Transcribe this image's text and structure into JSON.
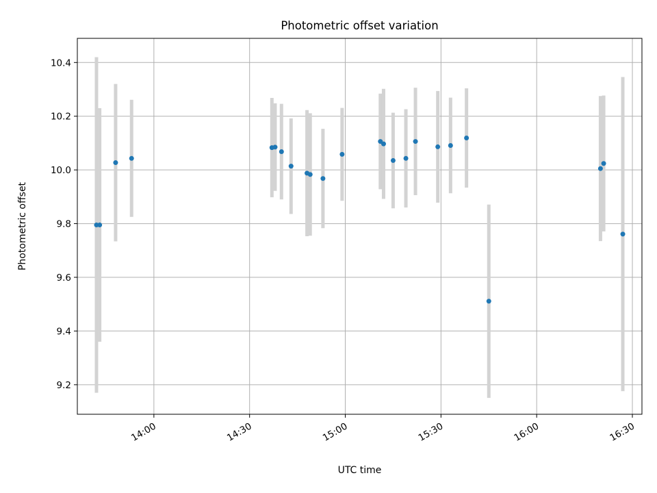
{
  "chart_data": {
    "type": "scatter",
    "title": "Photometric offset variation",
    "xlabel": "UTC time",
    "ylabel": "Photometric offset",
    "x_unit": "minutes",
    "xlim": [
      "13:36",
      "16:33"
    ],
    "ylim": [
      9.09,
      10.49
    ],
    "x_ticks": [
      "14:00",
      "14:30",
      "15:00",
      "15:30",
      "16:00",
      "16:30"
    ],
    "y_ticks": [
      "9.2",
      "9.4",
      "9.6",
      "9.8",
      "10.0",
      "10.2",
      "10.4"
    ],
    "grid": true,
    "colors": {
      "points": "#1f77b4",
      "error_bars": "#d3d3d3",
      "grid": "#b0b0b0"
    },
    "points": [
      {
        "x": "13:42",
        "y": 9.795,
        "yerr": 0.625
      },
      {
        "x": "13:43",
        "y": 9.795,
        "yerr": 0.435
      },
      {
        "x": "13:48",
        "y": 10.027,
        "yerr": 0.293
      },
      {
        "x": "13:53",
        "y": 10.043,
        "yerr": 0.218
      },
      {
        "x": "14:37",
        "y": 10.083,
        "yerr": 0.185
      },
      {
        "x": "14:38",
        "y": 10.085,
        "yerr": 0.163
      },
      {
        "x": "14:40",
        "y": 10.068,
        "yerr": 0.178
      },
      {
        "x": "14:43",
        "y": 10.014,
        "yerr": 0.178
      },
      {
        "x": "14:48",
        "y": 9.988,
        "yerr": 0.235
      },
      {
        "x": "14:49",
        "y": 9.983,
        "yerr": 0.228
      },
      {
        "x": "14:53",
        "y": 9.968,
        "yerr": 0.185
      },
      {
        "x": "14:59",
        "y": 10.058,
        "yerr": 0.173
      },
      {
        "x": "15:11",
        "y": 10.106,
        "yerr": 0.178
      },
      {
        "x": "15:12",
        "y": 10.097,
        "yerr": 0.205
      },
      {
        "x": "15:15",
        "y": 10.035,
        "yerr": 0.178
      },
      {
        "x": "15:19",
        "y": 10.043,
        "yerr": 0.183
      },
      {
        "x": "15:22",
        "y": 10.106,
        "yerr": 0.2
      },
      {
        "x": "15:29",
        "y": 10.086,
        "yerr": 0.208
      },
      {
        "x": "15:33",
        "y": 10.091,
        "yerr": 0.178
      },
      {
        "x": "15:38",
        "y": 10.119,
        "yerr": 0.185
      },
      {
        "x": "15:45",
        "y": 9.511,
        "yerr": 0.36
      },
      {
        "x": "16:20",
        "y": 10.005,
        "yerr": 0.27
      },
      {
        "x": "16:21",
        "y": 10.024,
        "yerr": 0.253
      },
      {
        "x": "16:27",
        "y": 9.761,
        "yerr": 0.585
      }
    ]
  }
}
